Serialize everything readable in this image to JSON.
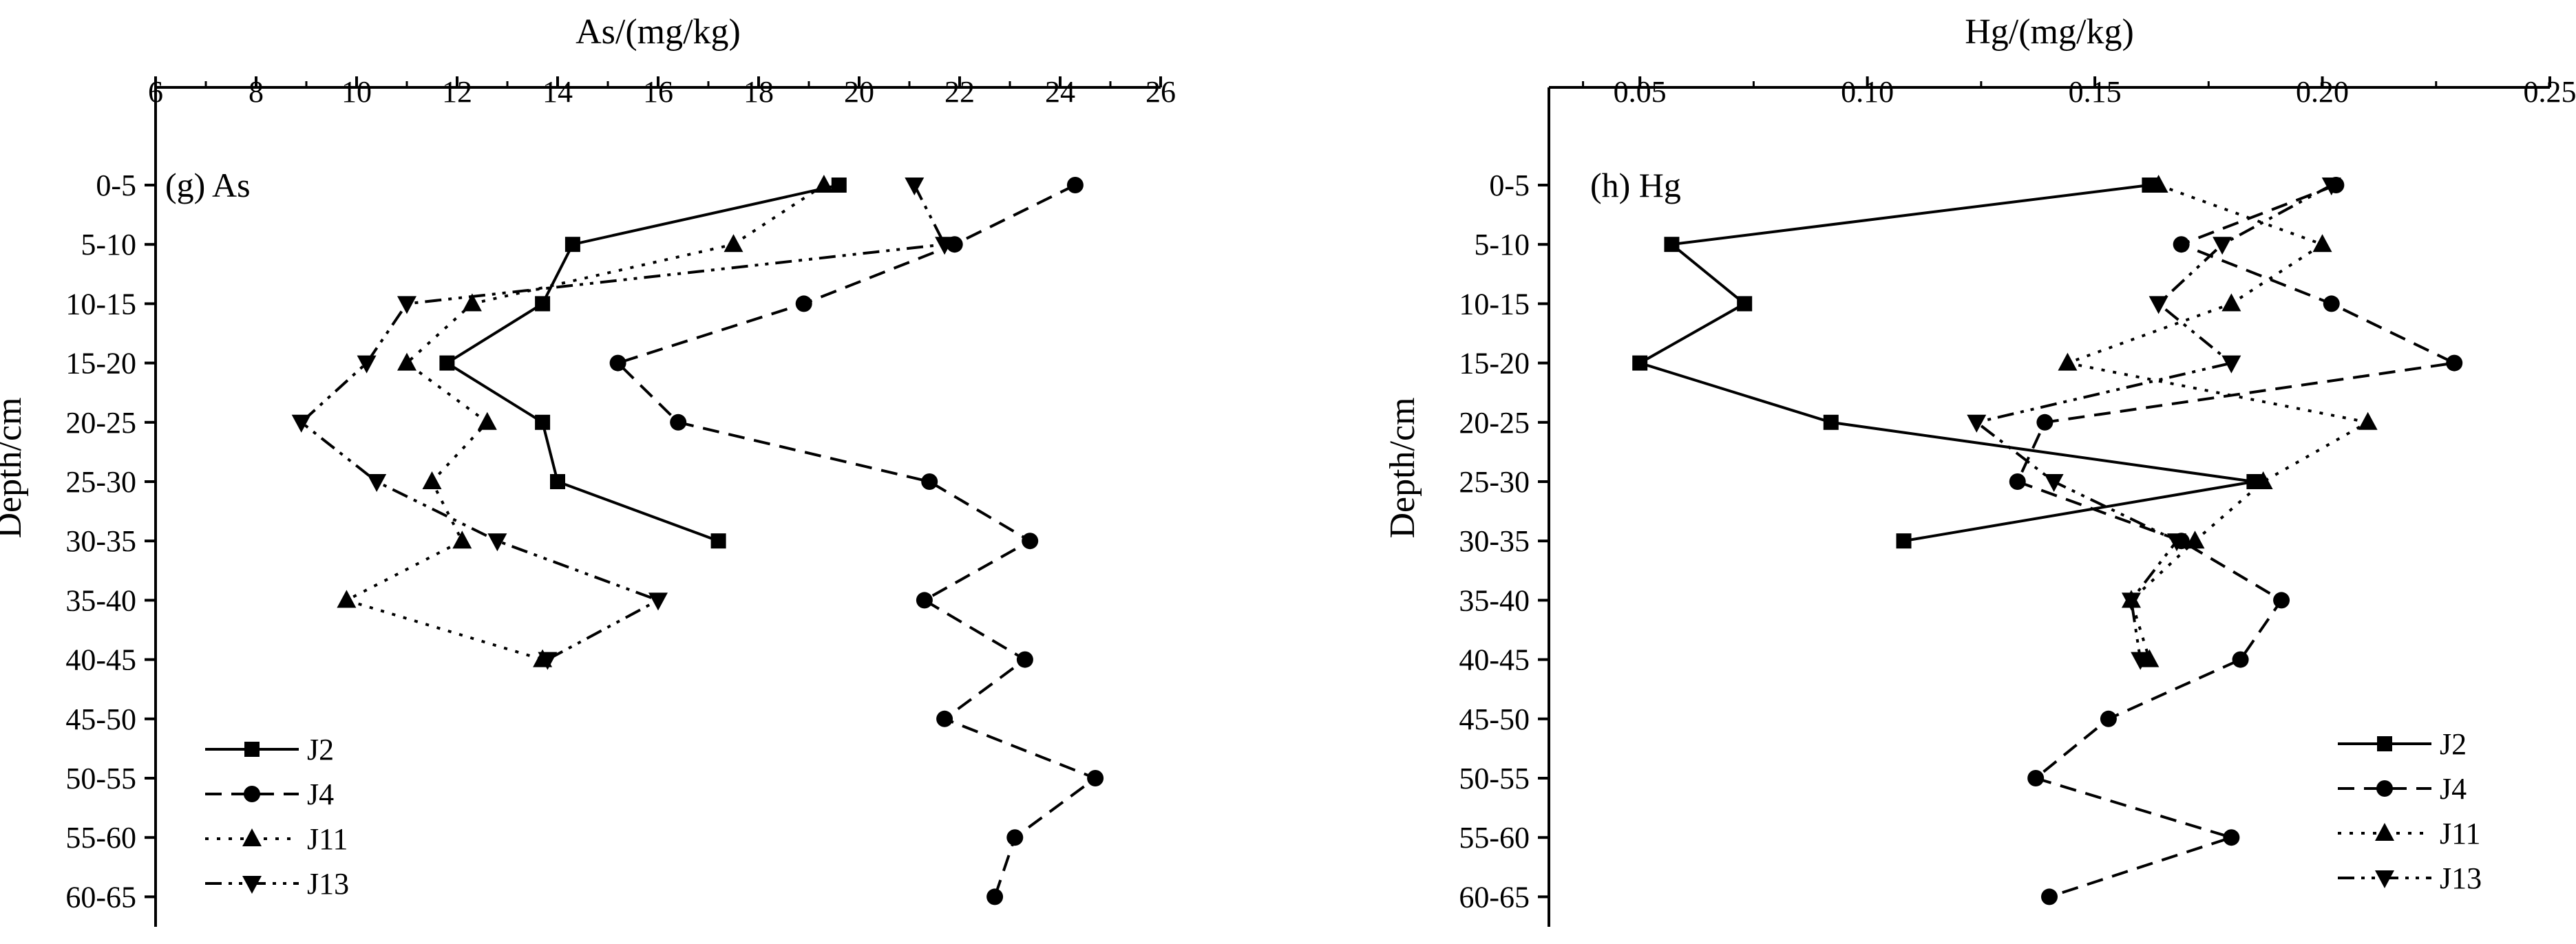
{
  "chart_data": [
    {
      "type": "line",
      "panel_label": "(g) As",
      "xlabel": "As/(mg/kg)",
      "ylabel": "Depth/cm",
      "xlim": [
        6,
        26
      ],
      "xticks": [
        "6",
        "8",
        "10",
        "12",
        "14",
        "16",
        "18",
        "20",
        "22",
        "24",
        "26"
      ],
      "depths": [
        "0-5",
        "5-10",
        "10-15",
        "15-20",
        "20-25",
        "25-30",
        "30-35",
        "35-40",
        "40-45",
        "45-50",
        "50-55",
        "55-60",
        "60-65"
      ],
      "legend_position": "bottom-left",
      "series": [
        {
          "name": "J2",
          "values": [
            19.6,
            14.3,
            13.7,
            11.8,
            13.7,
            14.0,
            17.2,
            null,
            null,
            null,
            null,
            null,
            null
          ]
        },
        {
          "name": "J4",
          "values": [
            24.3,
            21.9,
            18.9,
            15.2,
            16.4,
            21.4,
            23.4,
            21.3,
            23.3,
            21.7,
            24.7,
            23.1,
            22.7
          ]
        },
        {
          "name": "J11",
          "values": [
            19.3,
            17.5,
            12.3,
            11.0,
            12.6,
            11.5,
            12.1,
            9.8,
            13.7,
            null,
            null,
            null,
            null
          ]
        },
        {
          "name": "J13",
          "values": [
            21.1,
            21.7,
            11.0,
            10.2,
            8.9,
            10.4,
            12.8,
            16.0,
            13.8,
            null,
            null,
            null,
            null
          ]
        }
      ]
    },
    {
      "type": "line",
      "panel_label": "(h) Hg",
      "xlabel": "Hg/(mg/kg)",
      "ylabel": "Depth/cm",
      "xlim": [
        0.03,
        0.25
      ],
      "xticks": [
        "0.05",
        "0.10",
        "0.15",
        "0.20",
        "0.25"
      ],
      "depths": [
        "0-5",
        "5-10",
        "10-15",
        "15-20",
        "20-25",
        "25-30",
        "30-35",
        "35-40",
        "40-45",
        "45-50",
        "50-55",
        "55-60",
        "60-65"
      ],
      "legend_position": "bottom-right",
      "series": [
        {
          "name": "J2",
          "values": [
            0.162,
            0.057,
            0.073,
            0.05,
            0.092,
            0.185,
            0.108,
            null,
            null,
            null,
            null,
            null,
            null
          ]
        },
        {
          "name": "J4",
          "values": [
            0.203,
            0.169,
            0.202,
            0.229,
            0.139,
            0.133,
            0.169,
            0.191,
            0.182,
            0.153,
            0.137,
            0.18,
            0.14
          ]
        },
        {
          "name": "J11",
          "values": [
            0.164,
            0.2,
            0.18,
            0.144,
            0.21,
            0.187,
            0.172,
            0.158,
            0.162,
            null,
            null,
            null,
            null
          ]
        },
        {
          "name": "J13",
          "values": [
            0.202,
            0.178,
            0.164,
            0.18,
            0.124,
            0.141,
            0.168,
            0.158,
            0.16,
            null,
            null,
            null,
            null
          ]
        }
      ]
    }
  ]
}
